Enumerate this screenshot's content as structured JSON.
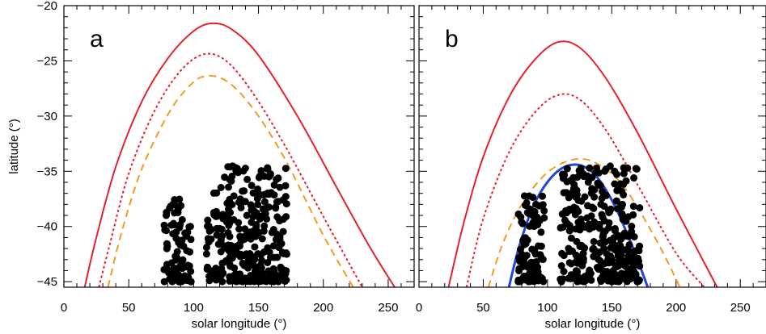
{
  "chart_data": [
    {
      "type": "scatter",
      "panel_label": "a",
      "xlabel": "solar longitude (°)",
      "ylabel": "latitude (°)",
      "xlim": [
        0,
        270
      ],
      "ylim": [
        -45.5,
        -20
      ],
      "x_ticks": [
        "0",
        "50",
        "100",
        "150",
        "200",
        "250"
      ],
      "y_ticks": [
        "-20",
        "-25",
        "-30",
        "-35",
        "-40",
        "-45"
      ],
      "curves": [
        {
          "style": "solid",
          "color": "#e4212c",
          "x": [
            16,
            25,
            40,
            60,
            80,
            100,
            115,
            130,
            150,
            180,
            210,
            235,
            255
          ],
          "y": [
            -45.5,
            -41.0,
            -34.6,
            -28.7,
            -24.8,
            -22.3,
            -21.6,
            -22.2,
            -24.5,
            -30.0,
            -36.4,
            -41.7,
            -45.5
          ]
        },
        {
          "style": "dotted",
          "color": "#e4212c",
          "x": [
            27,
            35,
            50,
            70,
            90,
            108,
            125,
            145,
            170,
            200,
            230
          ],
          "y": [
            -45.5,
            -41.8,
            -35.2,
            -29.5,
            -25.9,
            -24.4,
            -25.0,
            -27.8,
            -32.6,
            -39.1,
            -45.5
          ]
        },
        {
          "style": "dashed",
          "color": "#f39a25",
          "x": [
            34,
            45,
            60,
            80,
            95,
            108,
            125,
            145,
            170,
            200,
            223
          ],
          "y": [
            -45.5,
            -40.3,
            -34.8,
            -29.9,
            -27.5,
            -26.4,
            -26.8,
            -29.2,
            -33.8,
            -40.8,
            -45.5
          ]
        }
      ],
      "point_clusters": [
        {
          "color": "#000000",
          "x_range": [
            77,
            98
          ],
          "y_range": [
            -45.0,
            -37.0
          ],
          "note_count": 90
        },
        {
          "color": "#000000",
          "x_range": [
            110,
            172
          ],
          "y_range": [
            -45.0,
            -34.5
          ],
          "note_count": 320
        }
      ]
    },
    {
      "type": "scatter",
      "panel_label": "b",
      "xlabel": "solar longitude (°)",
      "ylabel": "",
      "xlim": [
        0,
        270
      ],
      "ylim": [
        -45.5,
        -20
      ],
      "x_ticks": [
        "0",
        "50",
        "100",
        "150",
        "200",
        "250"
      ],
      "curves": [
        {
          "style": "solid",
          "color": "#e4212c",
          "x": [
            23,
            35,
            50,
            70,
            90,
            108,
            125,
            145,
            170,
            200,
            232
          ],
          "y": [
            -45.5,
            -39.6,
            -33.7,
            -28.3,
            -24.9,
            -23.3,
            -23.8,
            -26.5,
            -31.5,
            -38.4,
            -45.5
          ]
        },
        {
          "style": "dotted",
          "color": "#e4212c",
          "x": [
            37,
            50,
            70,
            90,
            108,
            125,
            145,
            170,
            200,
            222
          ],
          "y": [
            -45.5,
            -39.3,
            -33.3,
            -29.7,
            -28.1,
            -28.5,
            -31.2,
            -36.2,
            -42.4,
            -45.5
          ]
        },
        {
          "style": "dashed",
          "color": "#f39a25",
          "x": [
            54,
            65,
            80,
            100,
            122,
            140,
            160,
            185,
            203
          ],
          "y": [
            -45.5,
            -41.6,
            -38.0,
            -35.1,
            -33.9,
            -34.4,
            -36.5,
            -41.3,
            -45.5
          ]
        },
        {
          "style": "solid",
          "color": "#1f45d8",
          "x": [
            70,
            78,
            90,
            105,
            120,
            135,
            150,
            165,
            178
          ],
          "y": [
            -45.5,
            -41.8,
            -37.9,
            -35.3,
            -34.4,
            -35.1,
            -37.6,
            -41.5,
            -45.5
          ]
        }
      ],
      "point_clusters": [
        {
          "color": "#000000",
          "x_range": [
            77,
            98
          ],
          "y_range": [
            -45.0,
            -37.0
          ],
          "note_count": 90
        },
        {
          "color": "#000000",
          "x_range": [
            110,
            172
          ],
          "y_range": [
            -45.0,
            -34.5
          ],
          "note_count": 320
        }
      ]
    }
  ]
}
